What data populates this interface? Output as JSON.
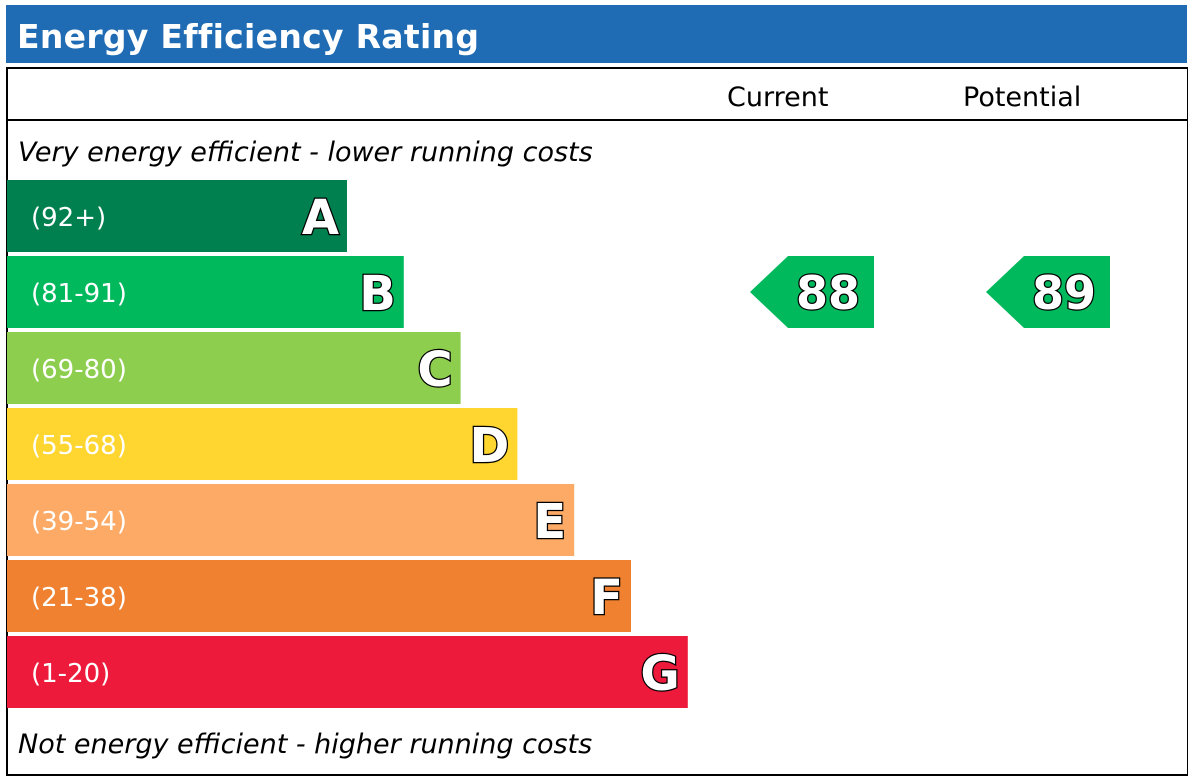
{
  "header": {
    "title": "Energy Efficiency Rating"
  },
  "columns": {
    "current": "Current",
    "potential": "Potential"
  },
  "notes": {
    "top": "Very energy efficient - lower running costs",
    "bottom": "Not energy efficient - higher running costs"
  },
  "chart_data": {
    "type": "bar",
    "bands": [
      {
        "letter": "A",
        "range": "(92+)",
        "color": "#007f4f"
      },
      {
        "letter": "B",
        "range": "(81-91)",
        "color": "#00b95c"
      },
      {
        "letter": "C",
        "range": "(69-80)",
        "color": "#8dce4e"
      },
      {
        "letter": "D",
        "range": "(55-68)",
        "color": "#ffd530"
      },
      {
        "letter": "E",
        "range": "(39-54)",
        "color": "#fcaa65"
      },
      {
        "letter": "F",
        "range": "(21-38)",
        "color": "#ef8130"
      },
      {
        "letter": "G",
        "range": "(1-20)",
        "color": "#ed1a3b"
      }
    ],
    "ratings": [
      {
        "column": "current",
        "value": "88",
        "band": "B",
        "color": "#00b95c"
      },
      {
        "column": "potential",
        "value": "89",
        "band": "B",
        "color": "#00b95c"
      }
    ]
  }
}
